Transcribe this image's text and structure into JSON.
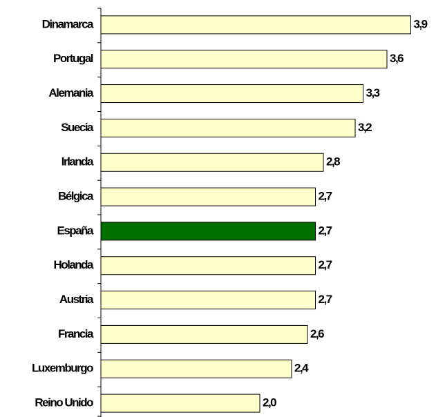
{
  "chart_data": {
    "type": "barh",
    "categories": [
      "Dinamarca",
      "Portugal",
      "Alemania",
      "Suecia",
      "Irlanda",
      "Bélgica",
      "España",
      "Holanda",
      "Austria",
      "Francia",
      "Luxemburgo",
      "Reino Unido"
    ],
    "values": [
      3.9,
      3.6,
      3.3,
      3.2,
      2.8,
      2.7,
      2.7,
      2.7,
      2.7,
      2.6,
      2.4,
      2.0
    ],
    "value_labels": [
      "3,9",
      "3,6",
      "3,3",
      "3,2",
      "2,8",
      "2,7",
      "2,7",
      "2,7",
      "2,7",
      "2,6",
      "2,4",
      "2,0"
    ],
    "colors": [
      "#ffffcc",
      "#ffffcc",
      "#ffffcc",
      "#ffffcc",
      "#ffffcc",
      "#ffffcc",
      "#007000",
      "#ffffcc",
      "#ffffcc",
      "#ffffcc",
      "#ffffcc",
      "#ffffcc"
    ],
    "xlim": [
      0,
      4
    ]
  }
}
